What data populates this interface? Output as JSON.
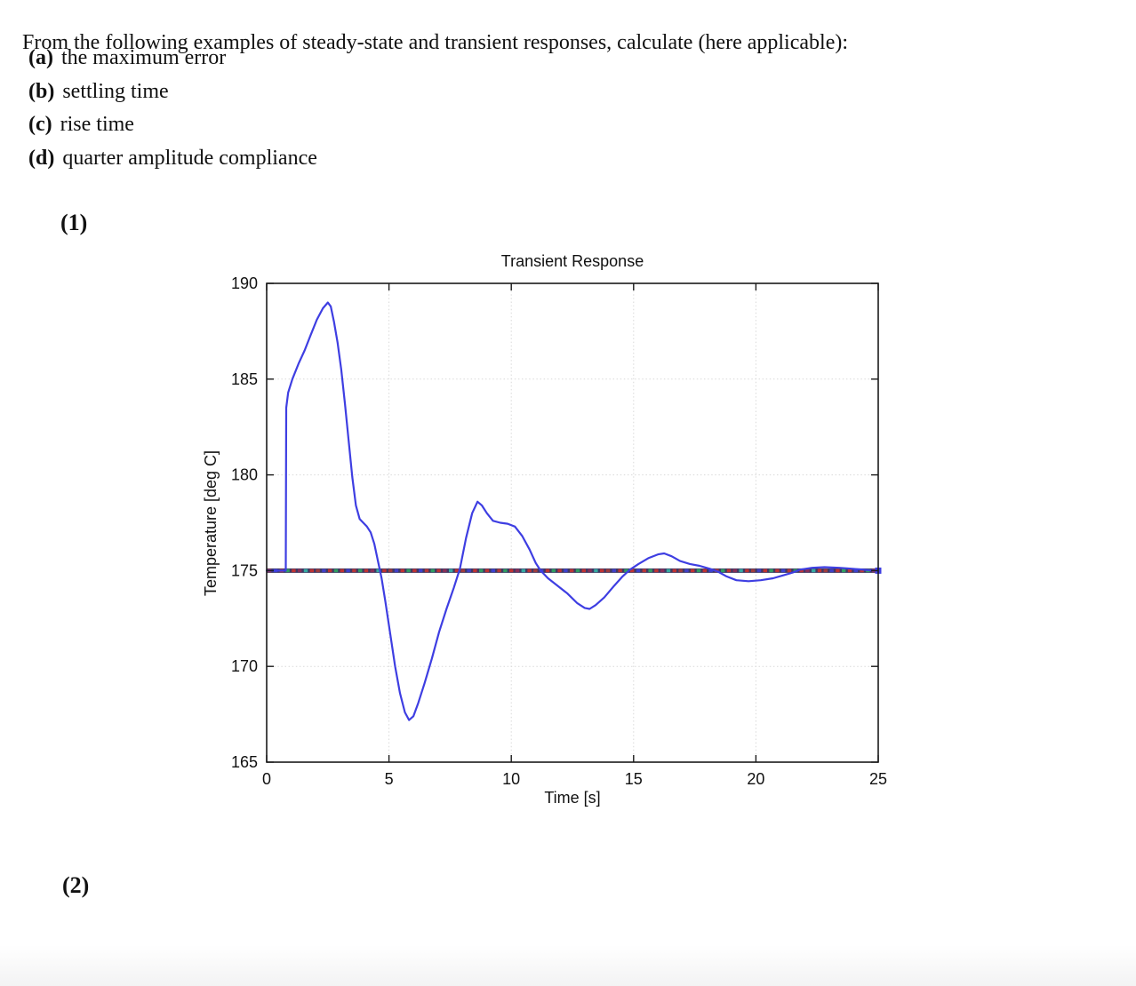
{
  "question": {
    "intro": "From the following examples of steady-state and transient responses, calculate (here applicable):",
    "items": [
      {
        "label": "(a)",
        "text": "the maximum error"
      },
      {
        "label": "(b)",
        "text": "settling time"
      },
      {
        "label": "(c)",
        "text": "rise time"
      },
      {
        "label": "(d)",
        "text": "quarter amplitude compliance"
      }
    ]
  },
  "sections": {
    "first": "(1)",
    "second": "(2)"
  },
  "chart_data": {
    "type": "line",
    "title": "Transient Response",
    "xlabel": "Time [s]",
    "ylabel": "Temperature [deg C]",
    "xlim": [
      0,
      25
    ],
    "ylim": [
      165,
      190
    ],
    "xticks": [
      0,
      5,
      10,
      15,
      20,
      25
    ],
    "yticks": [
      165,
      170,
      175,
      180,
      185,
      190
    ],
    "grid": true,
    "grid_color": "#d9d9d9",
    "legend_position": "none",
    "series": [
      {
        "name": "temperature-response",
        "color": "#3e3ee2",
        "points": [
          [
            0,
            175
          ],
          [
            0.78,
            175
          ],
          [
            0.8,
            183.5
          ],
          [
            0.88,
            184.3
          ],
          [
            1.05,
            185.0
          ],
          [
            1.3,
            185.8
          ],
          [
            1.55,
            186.5
          ],
          [
            1.8,
            187.3
          ],
          [
            2.05,
            188.1
          ],
          [
            2.3,
            188.7
          ],
          [
            2.5,
            189.0
          ],
          [
            2.62,
            188.8
          ],
          [
            2.75,
            188.0
          ],
          [
            2.9,
            186.9
          ],
          [
            3.05,
            185.5
          ],
          [
            3.2,
            183.7
          ],
          [
            3.35,
            181.8
          ],
          [
            3.5,
            179.9
          ],
          [
            3.65,
            178.4
          ],
          [
            3.8,
            177.7
          ],
          [
            3.95,
            177.5
          ],
          [
            4.1,
            177.3
          ],
          [
            4.25,
            177.0
          ],
          [
            4.4,
            176.4
          ],
          [
            4.55,
            175.5
          ],
          [
            4.7,
            174.6
          ],
          [
            4.85,
            173.4
          ],
          [
            5.05,
            171.7
          ],
          [
            5.25,
            170.0
          ],
          [
            5.45,
            168.6
          ],
          [
            5.65,
            167.6
          ],
          [
            5.82,
            167.2
          ],
          [
            6.0,
            167.4
          ],
          [
            6.2,
            168.1
          ],
          [
            6.45,
            169.1
          ],
          [
            6.75,
            170.4
          ],
          [
            7.05,
            171.8
          ],
          [
            7.35,
            173.0
          ],
          [
            7.65,
            174.1
          ],
          [
            7.9,
            175.1
          ],
          [
            8.15,
            176.7
          ],
          [
            8.4,
            178.0
          ],
          [
            8.62,
            178.6
          ],
          [
            8.8,
            178.4
          ],
          [
            9.0,
            178.0
          ],
          [
            9.25,
            177.6
          ],
          [
            9.55,
            177.5
          ],
          [
            9.85,
            177.45
          ],
          [
            10.15,
            177.3
          ],
          [
            10.45,
            176.8
          ],
          [
            10.75,
            176.1
          ],
          [
            11.0,
            175.4
          ],
          [
            11.2,
            175.0
          ],
          [
            11.5,
            174.6
          ],
          [
            11.9,
            174.2
          ],
          [
            12.3,
            173.8
          ],
          [
            12.7,
            173.3
          ],
          [
            13.0,
            173.05
          ],
          [
            13.2,
            173.0
          ],
          [
            13.45,
            173.2
          ],
          [
            13.8,
            173.6
          ],
          [
            14.2,
            174.2
          ],
          [
            14.55,
            174.7
          ],
          [
            14.85,
            175.05
          ],
          [
            15.2,
            175.35
          ],
          [
            15.6,
            175.65
          ],
          [
            16.0,
            175.85
          ],
          [
            16.25,
            175.9
          ],
          [
            16.55,
            175.75
          ],
          [
            16.9,
            175.5
          ],
          [
            17.3,
            175.35
          ],
          [
            17.7,
            175.25
          ],
          [
            18.1,
            175.1
          ],
          [
            18.45,
            174.95
          ],
          [
            18.8,
            174.7
          ],
          [
            19.2,
            174.5
          ],
          [
            19.7,
            174.45
          ],
          [
            20.2,
            174.5
          ],
          [
            20.7,
            174.6
          ],
          [
            21.1,
            174.75
          ],
          [
            21.5,
            174.9
          ],
          [
            21.8,
            175.05
          ],
          [
            22.3,
            175.15
          ],
          [
            22.8,
            175.18
          ],
          [
            23.4,
            175.15
          ],
          [
            23.9,
            175.1
          ],
          [
            24.4,
            175.05
          ],
          [
            24.8,
            175.0
          ],
          [
            25,
            175.0
          ]
        ]
      },
      {
        "name": "setpoint-line",
        "value": 175,
        "base_color": "#3f3a63",
        "marker_color": "#3e3ee2",
        "dash_colors": [
          "#c03232",
          "#3c41cf",
          "#b93636",
          "#2f9e62",
          "#c03232",
          "#8a2f57",
          "#35aaa2",
          "#c03232",
          "#a13c3c",
          "#4040c8",
          "#c03232",
          "#2f9e62"
        ]
      }
    ]
  }
}
